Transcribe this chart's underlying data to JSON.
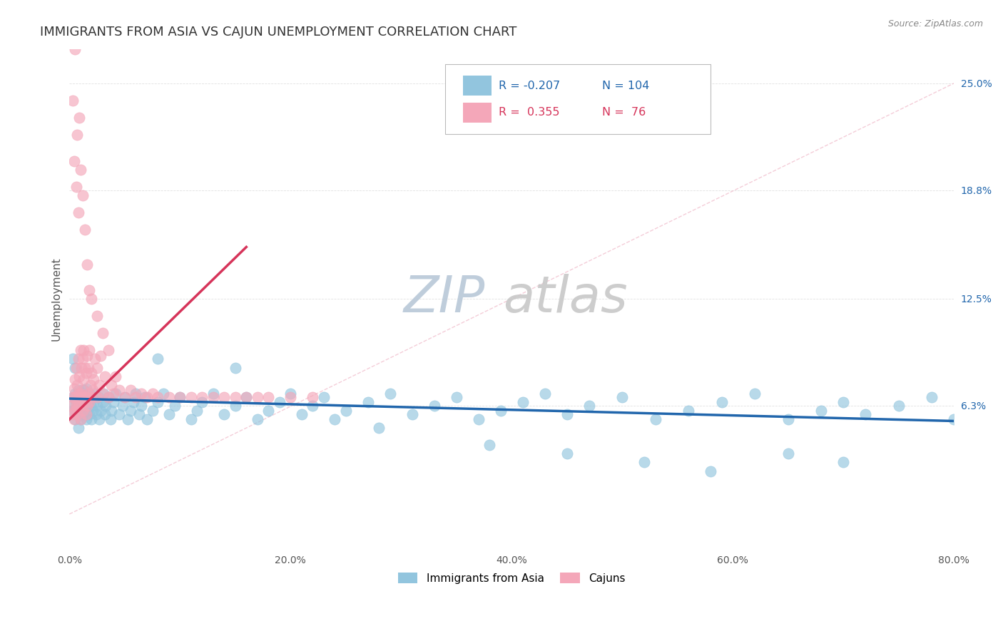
{
  "title": "IMMIGRANTS FROM ASIA VS CAJUN UNEMPLOYMENT CORRELATION CHART",
  "source_text": "Source: ZipAtlas.com",
  "ylabel": "Unemployment",
  "xlim": [
    0.0,
    0.8
  ],
  "ylim": [
    -0.02,
    0.27
  ],
  "xtick_labels": [
    "0.0%",
    "20.0%",
    "40.0%",
    "60.0%",
    "80.0%"
  ],
  "xtick_vals": [
    0.0,
    0.2,
    0.4,
    0.6,
    0.8
  ],
  "ytick_labels": [
    "6.3%",
    "12.5%",
    "18.8%",
    "25.0%"
  ],
  "ytick_vals": [
    0.063,
    0.125,
    0.188,
    0.25
  ],
  "watermark_zip": "ZIP",
  "watermark_atlas": "atlas",
  "legend_R1": "-0.207",
  "legend_N1": "104",
  "legend_R2": "0.355",
  "legend_N2": "76",
  "color_blue": "#92c5de",
  "color_pink": "#f4a7b9",
  "color_blue_dark": "#2166ac",
  "color_pink_dark": "#d6345a",
  "scatter_alpha": 0.65,
  "scatter_size": 120,
  "blue_scatter_x": [
    0.002,
    0.003,
    0.004,
    0.005,
    0.005,
    0.006,
    0.007,
    0.008,
    0.008,
    0.009,
    0.01,
    0.01,
    0.01,
    0.011,
    0.012,
    0.012,
    0.013,
    0.013,
    0.014,
    0.015,
    0.015,
    0.015,
    0.016,
    0.017,
    0.018,
    0.018,
    0.019,
    0.02,
    0.02,
    0.021,
    0.022,
    0.023,
    0.024,
    0.025,
    0.026,
    0.027,
    0.028,
    0.03,
    0.031,
    0.032,
    0.033,
    0.035,
    0.037,
    0.038,
    0.04,
    0.042,
    0.045,
    0.048,
    0.05,
    0.053,
    0.055,
    0.058,
    0.06,
    0.063,
    0.065,
    0.068,
    0.07,
    0.075,
    0.08,
    0.085,
    0.09,
    0.095,
    0.1,
    0.11,
    0.115,
    0.12,
    0.13,
    0.14,
    0.15,
    0.16,
    0.17,
    0.18,
    0.19,
    0.2,
    0.21,
    0.22,
    0.23,
    0.24,
    0.25,
    0.27,
    0.29,
    0.31,
    0.33,
    0.35,
    0.37,
    0.39,
    0.41,
    0.43,
    0.45,
    0.47,
    0.5,
    0.53,
    0.56,
    0.59,
    0.62,
    0.65,
    0.68,
    0.7,
    0.72,
    0.75,
    0.78,
    0.8,
    0.003,
    0.005
  ],
  "blue_scatter_y": [
    0.063,
    0.06,
    0.068,
    0.055,
    0.07,
    0.065,
    0.058,
    0.072,
    0.05,
    0.06,
    0.063,
    0.068,
    0.055,
    0.07,
    0.058,
    0.065,
    0.06,
    0.072,
    0.063,
    0.055,
    0.068,
    0.073,
    0.06,
    0.065,
    0.058,
    0.07,
    0.063,
    0.055,
    0.068,
    0.06,
    0.065,
    0.07,
    0.058,
    0.063,
    0.068,
    0.055,
    0.06,
    0.065,
    0.07,
    0.058,
    0.063,
    0.068,
    0.055,
    0.06,
    0.065,
    0.07,
    0.058,
    0.063,
    0.068,
    0.055,
    0.06,
    0.065,
    0.07,
    0.058,
    0.063,
    0.068,
    0.055,
    0.06,
    0.065,
    0.07,
    0.058,
    0.063,
    0.068,
    0.055,
    0.06,
    0.065,
    0.07,
    0.058,
    0.063,
    0.068,
    0.055,
    0.06,
    0.065,
    0.07,
    0.058,
    0.063,
    0.068,
    0.055,
    0.06,
    0.065,
    0.07,
    0.058,
    0.063,
    0.068,
    0.055,
    0.06,
    0.065,
    0.07,
    0.058,
    0.063,
    0.068,
    0.055,
    0.06,
    0.065,
    0.07,
    0.055,
    0.06,
    0.065,
    0.058,
    0.063,
    0.068,
    0.055,
    0.09,
    0.085
  ],
  "pink_scatter_x": [
    0.002,
    0.003,
    0.003,
    0.004,
    0.004,
    0.005,
    0.005,
    0.005,
    0.006,
    0.006,
    0.007,
    0.007,
    0.008,
    0.008,
    0.008,
    0.009,
    0.009,
    0.01,
    0.01,
    0.01,
    0.01,
    0.011,
    0.011,
    0.012,
    0.012,
    0.012,
    0.013,
    0.013,
    0.013,
    0.014,
    0.014,
    0.015,
    0.015,
    0.015,
    0.016,
    0.016,
    0.017,
    0.017,
    0.018,
    0.018,
    0.019,
    0.02,
    0.02,
    0.021,
    0.022,
    0.023,
    0.025,
    0.025,
    0.027,
    0.028,
    0.03,
    0.032,
    0.035,
    0.038,
    0.04,
    0.042,
    0.045,
    0.05,
    0.055,
    0.06,
    0.065,
    0.07,
    0.075,
    0.08,
    0.09,
    0.1,
    0.11,
    0.12,
    0.13,
    0.14,
    0.15,
    0.16,
    0.17,
    0.18,
    0.2,
    0.22
  ],
  "pink_scatter_y": [
    0.063,
    0.058,
    0.068,
    0.055,
    0.073,
    0.06,
    0.068,
    0.078,
    0.063,
    0.085,
    0.058,
    0.075,
    0.063,
    0.07,
    0.09,
    0.068,
    0.08,
    0.055,
    0.063,
    0.07,
    0.095,
    0.068,
    0.085,
    0.06,
    0.072,
    0.09,
    0.065,
    0.078,
    0.095,
    0.068,
    0.085,
    0.058,
    0.068,
    0.082,
    0.063,
    0.092,
    0.07,
    0.085,
    0.065,
    0.095,
    0.075,
    0.068,
    0.082,
    0.072,
    0.078,
    0.09,
    0.068,
    0.085,
    0.075,
    0.092,
    0.07,
    0.08,
    0.068,
    0.075,
    0.07,
    0.08,
    0.072,
    0.068,
    0.072,
    0.068,
    0.07,
    0.068,
    0.07,
    0.068,
    0.068,
    0.068,
    0.068,
    0.068,
    0.068,
    0.068,
    0.068,
    0.068,
    0.068,
    0.068,
    0.068,
    0.068
  ],
  "pink_outlier_x": [
    0.003,
    0.004,
    0.005,
    0.006,
    0.007,
    0.008,
    0.009,
    0.01,
    0.012,
    0.014,
    0.016,
    0.018,
    0.02,
    0.025,
    0.03,
    0.035
  ],
  "pink_outlier_y": [
    0.24,
    0.205,
    0.27,
    0.19,
    0.22,
    0.175,
    0.23,
    0.2,
    0.185,
    0.165,
    0.145,
    0.13,
    0.125,
    0.115,
    0.105,
    0.095
  ],
  "blue_outlier_x": [
    0.08,
    0.15,
    0.28,
    0.38,
    0.45,
    0.52,
    0.58,
    0.65,
    0.7
  ],
  "blue_outlier_y": [
    0.09,
    0.085,
    0.05,
    0.04,
    0.035,
    0.03,
    0.025,
    0.035,
    0.03
  ],
  "blue_trend_x": [
    0.0,
    0.8
  ],
  "blue_trend_y": [
    0.067,
    0.054
  ],
  "pink_trend_x": [
    0.0,
    0.16
  ],
  "pink_trend_y": [
    0.055,
    0.155
  ],
  "ref_line_x": [
    0.0,
    0.8
  ],
  "ref_line_y": [
    0.0,
    0.25
  ],
  "title_fontsize": 13,
  "axis_label_fontsize": 11,
  "tick_fontsize": 10,
  "legend_fontsize": 11,
  "watermark_fontsize_zip": 52,
  "watermark_fontsize_atlas": 52,
  "watermark_color_zip": "#b8c8d8",
  "watermark_color_atlas": "#c8c8c8",
  "source_fontsize": 9,
  "source_color": "#888888"
}
